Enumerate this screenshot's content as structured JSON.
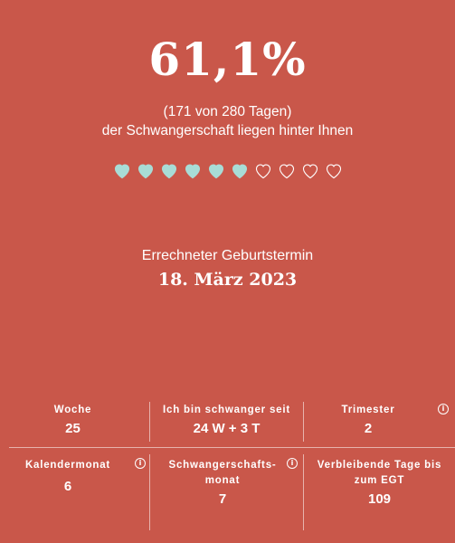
{
  "progress": {
    "percent": "61,1%",
    "fraction": 0.611,
    "days_text": "(171 von 280 Tagen)",
    "subtitle": "der Schwangerschaft liegen hinter Ihnen"
  },
  "hearts": {
    "filled": 6,
    "total": 10,
    "filled_color": "#a8dcd6",
    "empty_color": "#ffffff"
  },
  "due": {
    "label": "Errechneter Geburtstermin",
    "date": "18. März 2023"
  },
  "stats": {
    "week": {
      "label": "Woche",
      "value": "25"
    },
    "since": {
      "label": "Ich bin schwanger seit",
      "value": "24 W + 3 T"
    },
    "trimester": {
      "label": "Trimester",
      "value": "2"
    },
    "calendar_month": {
      "label": "Kalendermonat",
      "value": "6"
    },
    "pregnancy_month": {
      "label_line1": "Schwangerschafts-",
      "label_line2": "monat",
      "value": "7"
    },
    "remaining": {
      "label_line1": "Verbleibende Tage bis",
      "label_line2": "zum EGT",
      "value": "109"
    },
    "info_glyph": "i"
  },
  "colors": {
    "background": "#c9574a",
    "text": "#ffffff",
    "accent": "#a8dcd6"
  }
}
